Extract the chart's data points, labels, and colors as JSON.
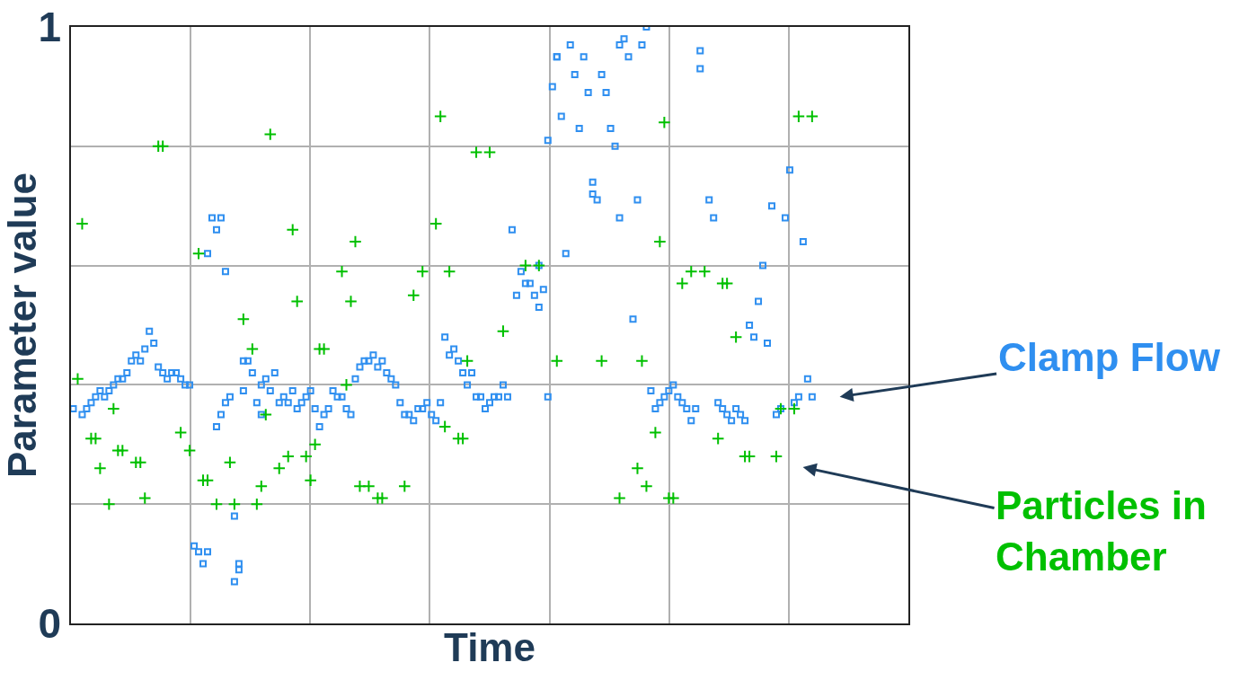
{
  "chart_data": {
    "type": "scatter",
    "xlabel": "Time",
    "ylabel": "Parameter value",
    "categories": [
      null,
      null,
      null,
      null,
      null,
      null,
      null,
      null,
      null,
      null,
      null,
      null,
      null,
      null,
      null,
      null,
      null,
      null,
      null,
      null,
      null,
      null,
      null,
      null,
      null,
      null,
      null,
      null,
      null,
      null,
      null,
      null,
      null,
      null,
      null,
      null,
      null,
      null,
      null,
      null,
      null,
      null,
      null,
      null,
      null,
      null,
      null,
      null,
      null,
      null,
      null,
      null,
      null,
      null,
      null,
      null,
      null,
      null,
      null,
      null,
      null,
      null,
      null,
      null,
      null,
      null,
      null,
      null,
      null,
      null,
      null,
      null,
      null,
      null,
      null,
      null,
      null,
      null,
      null,
      null,
      null,
      null,
      null,
      null,
      null,
      null,
      null,
      null,
      null,
      null,
      null,
      null,
      null,
      null,
      null,
      null,
      null,
      null,
      null,
      null,
      null,
      null,
      null,
      null,
      null,
      null,
      null,
      null,
      null,
      null,
      null,
      null,
      null,
      null,
      null,
      null,
      null,
      null,
      null,
      null,
      null,
      null,
      null,
      null,
      null,
      null,
      null,
      null,
      null,
      null,
      null,
      null,
      null,
      null,
      null,
      null,
      null,
      null,
      null,
      null,
      null,
      null,
      null,
      null,
      null,
      null,
      null,
      null,
      null,
      null,
      null,
      null,
      null,
      null,
      null,
      null,
      null,
      null,
      null,
      null,
      null,
      null,
      null,
      null,
      null,
      null,
      null,
      null,
      null,
      null,
      null,
      null,
      null,
      null,
      null,
      null,
      null,
      null,
      null,
      null,
      null,
      null,
      null,
      null,
      null,
      null,
      null
    ],
    "ylim": [
      0,
      1
    ],
    "yticks": [
      0,
      {
        "value": 0.2,
        "label": null
      },
      {
        "value": 0.4,
        "label": null
      },
      {
        "value": 0.6,
        "label": null
      },
      {
        "value": 0.8,
        "label": null
      },
      1
    ],
    "grid": true,
    "legend": false,
    "series": [
      {
        "name": "Clamp Flow",
        "color": "#2f8ff0",
        "marker": "square",
        "values": [
          0.36,
          null,
          0.35,
          0.36,
          0.37,
          0.38,
          0.39,
          0.38,
          0.39,
          0.4,
          0.41,
          0.41,
          0.42,
          0.44,
          0.45,
          0.44,
          0.46,
          0.49,
          0.47,
          0.43,
          0.42,
          0.41,
          0.42,
          0.42,
          0.41,
          0.4,
          0.4,
          0.13,
          0.12,
          0.1,
          0.12,
          0.68,
          0.66,
          0.68,
          0.59,
          0.38,
          0.18,
          0.1,
          0.39,
          0.44,
          0.42,
          0.37,
          0.4,
          0.41,
          0.39,
          0.42,
          0.37,
          0.38,
          0.37,
          0.39,
          0.36,
          0.37,
          0.38,
          0.39,
          0.36,
          0.33,
          0.35,
          0.36,
          0.39,
          0.38,
          0.38,
          0.36,
          0.35,
          0.41,
          0.43,
          0.44,
          0.44,
          0.45,
          0.43,
          0.44,
          0.42,
          0.41,
          0.4,
          0.37,
          0.35,
          0.35,
          0.34,
          0.36,
          0.36,
          0.37,
          0.35,
          0.34,
          0.37,
          0.48,
          0.45,
          0.46,
          0.44,
          0.42,
          0.4,
          0.42,
          0.38,
          0.38,
          0.36,
          0.37,
          0.38,
          0.38,
          0.4,
          0.38,
          0.66,
          0.55,
          0.59,
          0.57,
          0.57,
          0.55,
          0.53,
          0.56,
          0.38,
          0.9,
          0.95,
          0.85,
          0.62,
          0.97,
          0.92,
          0.83,
          0.95,
          0.89,
          0.74,
          0.71,
          0.92,
          0.89,
          0.83,
          0.8,
          0.97,
          0.98,
          0.95,
          0.51,
          0.71,
          0.97,
          1.0,
          0.39,
          0.36,
          0.37,
          0.38,
          0.39,
          0.4,
          0.38,
          0.37,
          0.36,
          0.34,
          0.36,
          0.93,
          null,
          0.71,
          0.68,
          0.37,
          0.36,
          0.35,
          0.34,
          0.36,
          0.35,
          0.34,
          0.5,
          0.48,
          0.54,
          0.6,
          0.47,
          0.7,
          0.35,
          0.36,
          0.68,
          0.76,
          0.37,
          0.38,
          0.64,
          0.41,
          0.38,
          null,
          null,
          null,
          null,
          null,
          null,
          null,
          null,
          null,
          null,
          null,
          null,
          null,
          null,
          null,
          null,
          null,
          null,
          null,
          null,
          null
        ]
      },
      {
        "color": "#2f8ff0",
        "marker": "square",
        "values": [
          null,
          null,
          null,
          null,
          null,
          null,
          null,
          null,
          null,
          null,
          null,
          null,
          null,
          null,
          null,
          null,
          null,
          null,
          null,
          null,
          null,
          null,
          null,
          null,
          null,
          null,
          null,
          null,
          null,
          null,
          0.62,
          null,
          0.33,
          0.35,
          0.37,
          null,
          0.07,
          0.09,
          0.44,
          null,
          null,
          null,
          0.35,
          null,
          null,
          null,
          null,
          null,
          null,
          null,
          null,
          null,
          null,
          null,
          null,
          null,
          null,
          null,
          null,
          null,
          null,
          null,
          null,
          null,
          null,
          null,
          null,
          null,
          null,
          null,
          null,
          null,
          null,
          null,
          null,
          null,
          null,
          null,
          null,
          null,
          null,
          null,
          null,
          null,
          null,
          null,
          null,
          null,
          null,
          null,
          null,
          null,
          null,
          null,
          null,
          null,
          null,
          null,
          null,
          null,
          null,
          null,
          null,
          null,
          0.6,
          null,
          0.81,
          null,
          0.95,
          null,
          null,
          null,
          null,
          null,
          null,
          null,
          0.72,
          null,
          null,
          null,
          null,
          null,
          0.68,
          null,
          null,
          null,
          null,
          null,
          null,
          null,
          null,
          null,
          null,
          null,
          null,
          null,
          null,
          null,
          null,
          null,
          0.96,
          null,
          null,
          null,
          null,
          null,
          null,
          null,
          null,
          null,
          null,
          null,
          null,
          null,
          null,
          null,
          null,
          null,
          null,
          null,
          null,
          null,
          null,
          null,
          null,
          null,
          null,
          null,
          null,
          null,
          null,
          null,
          null,
          null,
          null,
          null,
          null,
          null,
          null,
          null,
          null,
          null,
          null,
          null,
          null,
          null,
          null
        ]
      },
      {
        "name": "Particles in Chamber",
        "color": "#00c000",
        "marker": "cross",
        "values": [
          null,
          0.41,
          0.67,
          null,
          0.31,
          0.31,
          0.26,
          null,
          0.2,
          0.36,
          0.29,
          0.29,
          null,
          null,
          0.27,
          0.27,
          0.21,
          null,
          null,
          0.8,
          0.8,
          null,
          null,
          null,
          0.32,
          null,
          0.29,
          null,
          0.62,
          0.24,
          0.24,
          null,
          0.2,
          null,
          null,
          0.27,
          0.2,
          null,
          0.51,
          null,
          0.46,
          0.2,
          0.23,
          0.35,
          0.82,
          null,
          0.26,
          null,
          0.28,
          0.66,
          0.54,
          null,
          0.28,
          0.24,
          0.3,
          0.46,
          0.46,
          null,
          null,
          null,
          0.59,
          0.4,
          0.54,
          0.64,
          0.23,
          null,
          0.23,
          null,
          0.21,
          0.21,
          null,
          null,
          null,
          null,
          0.23,
          null,
          0.55,
          null,
          0.59,
          null,
          null,
          0.67,
          0.85,
          0.33,
          0.59,
          null,
          0.31,
          0.31,
          0.44,
          null,
          0.79,
          null,
          null,
          0.79,
          null,
          null,
          0.49,
          null,
          null,
          null,
          null,
          0.6,
          null,
          null,
          0.6,
          null,
          null,
          null,
          0.44,
          null,
          null,
          null,
          null,
          null,
          null,
          null,
          null,
          null,
          0.44,
          null,
          null,
          null,
          0.21,
          null,
          null,
          null,
          0.26,
          0.44,
          0.23,
          null,
          0.32,
          0.64,
          0.84,
          0.21,
          0.21,
          null,
          0.57,
          null,
          0.59,
          null,
          null,
          0.59,
          null,
          null,
          0.31,
          0.57,
          0.57,
          null,
          0.48,
          null,
          0.28,
          0.28,
          null,
          null,
          null,
          null,
          null,
          0.28,
          0.36,
          null,
          null,
          0.36,
          0.85,
          null,
          null,
          0.85,
          null,
          null,
          null,
          null,
          null,
          null,
          null,
          null,
          null,
          null,
          null,
          null,
          null,
          null,
          null,
          null,
          null,
          null,
          null,
          null,
          null
        ]
      }
    ]
  }
}
